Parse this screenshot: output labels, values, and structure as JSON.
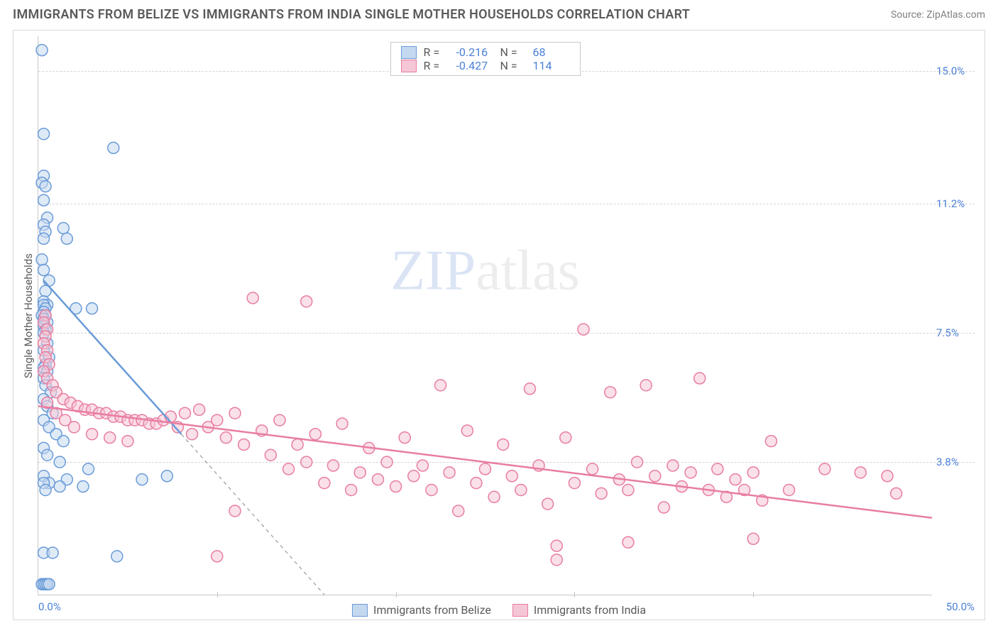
{
  "title": "IMMIGRANTS FROM BELIZE VS IMMIGRANTS FROM INDIA SINGLE MOTHER HOUSEHOLDS CORRELATION CHART",
  "source": "Source: ZipAtlas.com",
  "watermark": {
    "left": "ZIP",
    "right": "atlas"
  },
  "y_axis_title": "Single Mother Households",
  "chart": {
    "type": "scatter",
    "background_color": "#ffffff",
    "grid_color": "#d5d5d5",
    "axis_color": "#c8c8c8",
    "text_color": "#5a5a5a",
    "value_label_color": "#4a7fd6",
    "xlim": [
      0,
      50
    ],
    "ylim": [
      0,
      16
    ],
    "x_labels": {
      "min": "0.0%",
      "max": "50.0%"
    },
    "y_ticks": [
      {
        "v": 3.8,
        "label": "3.8%"
      },
      {
        "v": 7.5,
        "label": "7.5%"
      },
      {
        "v": 11.2,
        "label": "11.2%"
      },
      {
        "v": 15.0,
        "label": "15.0%"
      }
    ],
    "x_ticks": [
      10,
      20,
      30,
      40
    ],
    "marker_radius": 8,
    "marker_stroke_width": 1.5,
    "trend_width_solid": 2.5,
    "trend_width_dash": 1.2
  },
  "series": {
    "belize": {
      "label": "Immigrants from Belize",
      "fill": "#c4d8f0",
      "stroke": "#6a9bd8",
      "fill_opacity": 0.55,
      "R": "-0.216",
      "N": "68",
      "trend": {
        "x1": 0.3,
        "y1": 9.0,
        "x2": 16.0,
        "y2": 0.0,
        "solid_x1": 0.3,
        "solid_y1": 9.0,
        "solid_x2": 8.0,
        "solid_y2": 4.6
      },
      "points": [
        [
          0.2,
          15.6
        ],
        [
          0.3,
          13.2
        ],
        [
          0.3,
          12.0
        ],
        [
          0.2,
          11.8
        ],
        [
          0.4,
          11.7
        ],
        [
          0.3,
          11.3
        ],
        [
          0.5,
          10.8
        ],
        [
          0.3,
          10.6
        ],
        [
          0.4,
          10.4
        ],
        [
          0.3,
          10.2
        ],
        [
          1.4,
          10.5
        ],
        [
          1.6,
          10.2
        ],
        [
          0.2,
          9.6
        ],
        [
          0.3,
          9.3
        ],
        [
          0.6,
          9.0
        ],
        [
          0.4,
          8.7
        ],
        [
          0.3,
          8.4
        ],
        [
          0.5,
          8.3
        ],
        [
          0.3,
          8.3
        ],
        [
          0.4,
          8.2
        ],
        [
          0.3,
          8.1
        ],
        [
          0.4,
          8.0
        ],
        [
          0.2,
          8.0
        ],
        [
          0.3,
          7.9
        ],
        [
          0.5,
          7.8
        ],
        [
          0.3,
          7.7
        ],
        [
          0.4,
          7.6
        ],
        [
          0.3,
          7.5
        ],
        [
          4.2,
          12.8
        ],
        [
          2.1,
          8.2
        ],
        [
          3.0,
          8.2
        ],
        [
          0.5,
          7.2
        ],
        [
          0.3,
          7.0
        ],
        [
          0.6,
          6.8
        ],
        [
          0.4,
          6.6
        ],
        [
          0.3,
          6.5
        ],
        [
          0.5,
          6.4
        ],
        [
          0.3,
          6.2
        ],
        [
          0.4,
          6.0
        ],
        [
          0.7,
          5.8
        ],
        [
          0.3,
          5.6
        ],
        [
          0.5,
          5.4
        ],
        [
          0.8,
          5.2
        ],
        [
          0.3,
          5.0
        ],
        [
          0.6,
          4.8
        ],
        [
          1.0,
          4.6
        ],
        [
          1.4,
          4.4
        ],
        [
          0.3,
          4.2
        ],
        [
          0.5,
          4.0
        ],
        [
          1.2,
          3.8
        ],
        [
          2.8,
          3.6
        ],
        [
          0.3,
          3.4
        ],
        [
          1.6,
          3.3
        ],
        [
          0.6,
          3.2
        ],
        [
          0.3,
          3.2
        ],
        [
          1.2,
          3.1
        ],
        [
          2.5,
          3.1
        ],
        [
          0.4,
          3.0
        ],
        [
          5.8,
          3.3
        ],
        [
          7.2,
          3.4
        ],
        [
          0.3,
          1.2
        ],
        [
          0.8,
          1.2
        ],
        [
          4.4,
          1.1
        ],
        [
          0.2,
          0.3
        ],
        [
          0.3,
          0.3
        ],
        [
          0.4,
          0.3
        ],
        [
          0.5,
          0.3
        ],
        [
          0.6,
          0.3
        ]
      ]
    },
    "india": {
      "label": "Immigrants from India",
      "fill": "#f5c6d5",
      "stroke": "#e87da0",
      "fill_opacity": 0.55,
      "R": "-0.427",
      "N": "114",
      "trend": {
        "x1": 0,
        "y1": 5.4,
        "x2": 50,
        "y2": 2.2
      },
      "points": [
        [
          0.4,
          8.0
        ],
        [
          0.3,
          7.8
        ],
        [
          0.5,
          7.6
        ],
        [
          0.4,
          7.4
        ],
        [
          0.3,
          7.2
        ],
        [
          0.5,
          7.0
        ],
        [
          0.4,
          6.8
        ],
        [
          0.6,
          6.6
        ],
        [
          0.3,
          6.4
        ],
        [
          0.5,
          6.2
        ],
        [
          0.8,
          6.0
        ],
        [
          1.0,
          5.8
        ],
        [
          1.4,
          5.6
        ],
        [
          1.8,
          5.5
        ],
        [
          2.2,
          5.4
        ],
        [
          2.6,
          5.3
        ],
        [
          3.0,
          5.3
        ],
        [
          3.4,
          5.2
        ],
        [
          3.8,
          5.2
        ],
        [
          4.2,
          5.1
        ],
        [
          4.6,
          5.1
        ],
        [
          5.0,
          5.0
        ],
        [
          5.4,
          5.0
        ],
        [
          5.8,
          5.0
        ],
        [
          6.2,
          4.9
        ],
        [
          6.6,
          4.9
        ],
        [
          7.0,
          5.0
        ],
        [
          7.4,
          5.1
        ],
        [
          7.8,
          4.8
        ],
        [
          8.2,
          5.2
        ],
        [
          8.6,
          4.6
        ],
        [
          9.0,
          5.3
        ],
        [
          9.5,
          4.8
        ],
        [
          10.0,
          5.0
        ],
        [
          10.5,
          4.5
        ],
        [
          11.0,
          5.2
        ],
        [
          11.5,
          4.3
        ],
        [
          12.0,
          8.5
        ],
        [
          12.5,
          4.7
        ],
        [
          13.0,
          4.0
        ],
        [
          13.5,
          5.0
        ],
        [
          14.0,
          3.6
        ],
        [
          14.5,
          4.3
        ],
        [
          15.0,
          3.8
        ],
        [
          15.5,
          4.6
        ],
        [
          16.0,
          3.2
        ],
        [
          16.5,
          3.7
        ],
        [
          17.0,
          4.9
        ],
        [
          17.5,
          3.0
        ],
        [
          18.0,
          3.5
        ],
        [
          18.5,
          4.2
        ],
        [
          19.0,
          3.3
        ],
        [
          19.5,
          3.8
        ],
        [
          20.0,
          3.1
        ],
        [
          20.5,
          4.5
        ],
        [
          21.0,
          3.4
        ],
        [
          21.5,
          3.7
        ],
        [
          22.0,
          3.0
        ],
        [
          22.5,
          6.0
        ],
        [
          23.0,
          3.5
        ],
        [
          23.5,
          2.4
        ],
        [
          24.0,
          4.7
        ],
        [
          24.5,
          3.2
        ],
        [
          25.0,
          3.6
        ],
        [
          25.5,
          2.8
        ],
        [
          26.0,
          4.3
        ],
        [
          26.5,
          3.4
        ],
        [
          27.0,
          3.0
        ],
        [
          27.5,
          5.9
        ],
        [
          28.0,
          3.7
        ],
        [
          28.5,
          2.6
        ],
        [
          29.0,
          1.4
        ],
        [
          29.5,
          4.5
        ],
        [
          30.0,
          3.2
        ],
        [
          30.5,
          7.6
        ],
        [
          31.0,
          3.6
        ],
        [
          31.5,
          2.9
        ],
        [
          32.0,
          5.8
        ],
        [
          32.5,
          3.3
        ],
        [
          33.0,
          3.0
        ],
        [
          33.5,
          3.8
        ],
        [
          34.0,
          6.0
        ],
        [
          34.5,
          3.4
        ],
        [
          35.0,
          2.5
        ],
        [
          35.5,
          3.7
        ],
        [
          36.0,
          3.1
        ],
        [
          36.5,
          3.5
        ],
        [
          37.0,
          6.2
        ],
        [
          37.5,
          3.0
        ],
        [
          38.0,
          3.6
        ],
        [
          38.5,
          2.8
        ],
        [
          39.0,
          3.3
        ],
        [
          39.5,
          3.0
        ],
        [
          40.0,
          3.5
        ],
        [
          40.5,
          2.7
        ],
        [
          41.0,
          4.4
        ],
        [
          42.0,
          3.0
        ],
        [
          44.0,
          3.6
        ],
        [
          46.0,
          3.5
        ],
        [
          48.0,
          2.9
        ],
        [
          33.0,
          1.5
        ],
        [
          29.0,
          1.0
        ],
        [
          47.5,
          3.4
        ],
        [
          40.0,
          1.6
        ],
        [
          10.0,
          1.1
        ],
        [
          11.0,
          2.4
        ],
        [
          15.0,
          8.4
        ],
        [
          0.5,
          5.5
        ],
        [
          1.0,
          5.2
        ],
        [
          1.5,
          5.0
        ],
        [
          2.0,
          4.8
        ],
        [
          3.0,
          4.6
        ],
        [
          4.0,
          4.5
        ],
        [
          5.0,
          4.4
        ]
      ]
    }
  }
}
